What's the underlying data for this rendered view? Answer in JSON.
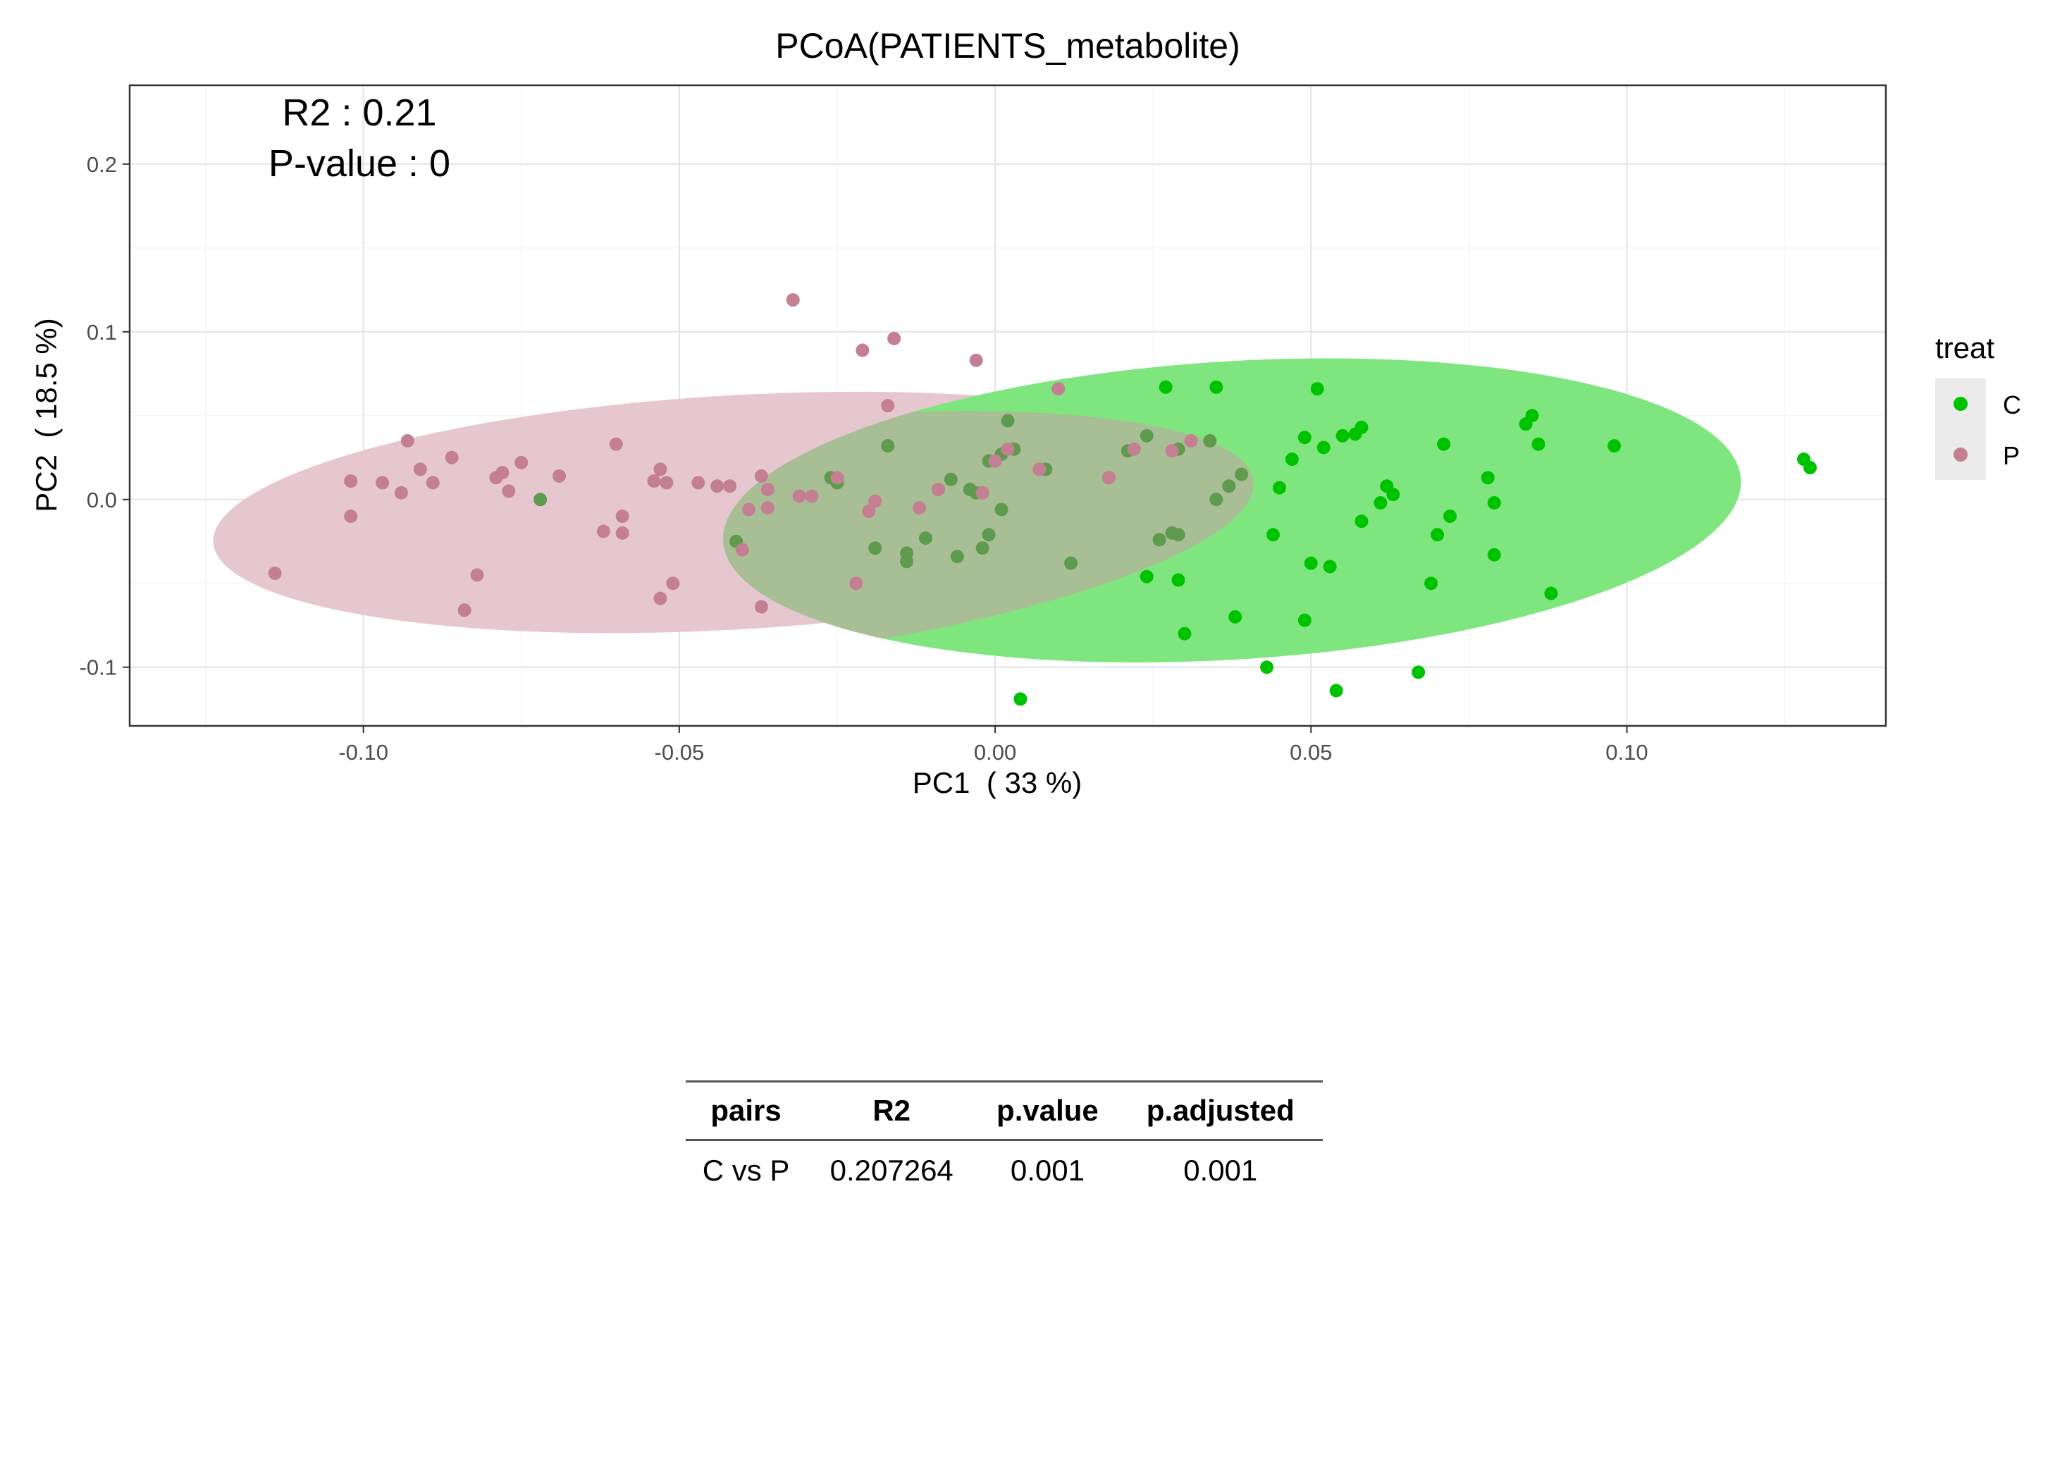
{
  "title": "PCoA(PATIENTS_metabolite)",
  "annotation": {
    "r2_text": "R2 : 0.21",
    "pvalue_text": "P-value : 0"
  },
  "legend": {
    "title": "treat",
    "items": [
      {
        "label": "C",
        "color": "#00C300"
      },
      {
        "label": "P",
        "color": "#C47F93"
      }
    ]
  },
  "chart_data": {
    "type": "scatter",
    "title": "PCoA(PATIENTS_metabolite)",
    "xlabel": "PC1  ( 33 %)",
    "ylabel": "PC2  ( 18.5 %)",
    "xlim": [
      -0.137,
      0.141
    ],
    "ylim": [
      -0.135,
      0.247
    ],
    "x_ticks": [
      -0.1,
      -0.05,
      0.0,
      0.05,
      0.1
    ],
    "x_tick_labels": [
      "-0.10",
      "-0.05",
      "0.00",
      "0.05",
      "0.10"
    ],
    "y_ticks": [
      -0.1,
      0.0,
      0.1,
      0.2
    ],
    "y_tick_labels": [
      "-0.1",
      "0.0",
      "0.1",
      "0.2"
    ],
    "grid": "on",
    "legend_position": "right",
    "ellipse_colors": {
      "C": "#7CE57C",
      "P": "#E5C6CF"
    },
    "ellipses": [
      {
        "group": "P",
        "center": [
          -0.0413,
          -0.0077
        ],
        "semi_axes": [
          0.0826,
          0.0698
        ],
        "angle_deg": 3.3
      },
      {
        "group": "C",
        "center": [
          0.0375,
          -0.0065
        ],
        "semi_axes": [
          0.0807,
          0.0889
        ],
        "angle_deg": 3.5
      }
    ],
    "series": [
      {
        "name": "C",
        "color": "#00C300",
        "points": [
          [
            -0.072,
            0.0
          ],
          [
            -0.041,
            -0.025
          ],
          [
            -0.026,
            0.013
          ],
          [
            -0.025,
            0.01
          ],
          [
            -0.019,
            -0.029
          ],
          [
            -0.017,
            0.032
          ],
          [
            -0.014,
            -0.032
          ],
          [
            -0.014,
            -0.037
          ],
          [
            -0.011,
            -0.023
          ],
          [
            -0.009,
            0.006
          ],
          [
            -0.007,
            0.012
          ],
          [
            -0.006,
            -0.034
          ],
          [
            -0.004,
            0.006
          ],
          [
            -0.003,
            0.004
          ],
          [
            -0.002,
            -0.029
          ],
          [
            -0.001,
            -0.021
          ],
          [
            -0.001,
            0.023
          ],
          [
            0.001,
            -0.006
          ],
          [
            0.001,
            0.027
          ],
          [
            0.002,
            0.047
          ],
          [
            0.003,
            0.03
          ],
          [
            0.004,
            -0.119
          ],
          [
            0.008,
            0.018
          ],
          [
            0.012,
            -0.038
          ],
          [
            0.018,
            0.013
          ],
          [
            0.021,
            0.029
          ],
          [
            0.024,
            -0.046
          ],
          [
            0.024,
            0.038
          ],
          [
            0.026,
            -0.024
          ],
          [
            0.027,
            0.067
          ],
          [
            0.028,
            -0.02
          ],
          [
            0.029,
            -0.021
          ],
          [
            0.029,
            0.03
          ],
          [
            0.029,
            -0.048
          ],
          [
            0.03,
            -0.08
          ],
          [
            0.034,
            0.035
          ],
          [
            0.035,
            0.067
          ],
          [
            0.035,
            0.0
          ],
          [
            0.037,
            0.008
          ],
          [
            0.038,
            -0.07
          ],
          [
            0.039,
            0.015
          ],
          [
            0.043,
            -0.1
          ],
          [
            0.044,
            -0.021
          ],
          [
            0.045,
            0.007
          ],
          [
            0.047,
            0.024
          ],
          [
            0.049,
            0.037
          ],
          [
            0.049,
            -0.072
          ],
          [
            0.05,
            -0.038
          ],
          [
            0.051,
            0.066
          ],
          [
            0.052,
            0.031
          ],
          [
            0.053,
            -0.04
          ],
          [
            0.054,
            -0.114
          ],
          [
            0.055,
            0.038
          ],
          [
            0.057,
            0.039
          ],
          [
            0.058,
            0.043
          ],
          [
            0.058,
            -0.013
          ],
          [
            0.061,
            -0.002
          ],
          [
            0.062,
            0.008
          ],
          [
            0.063,
            0.003
          ],
          [
            0.067,
            -0.103
          ],
          [
            0.069,
            -0.05
          ],
          [
            0.07,
            -0.021
          ],
          [
            0.071,
            0.033
          ],
          [
            0.072,
            -0.01
          ],
          [
            0.078,
            0.013
          ],
          [
            0.079,
            -0.033
          ],
          [
            0.079,
            -0.002
          ],
          [
            0.084,
            0.045
          ],
          [
            0.085,
            0.05
          ],
          [
            0.086,
            0.033
          ],
          [
            0.088,
            -0.056
          ],
          [
            0.098,
            0.032
          ],
          [
            0.128,
            0.024
          ],
          [
            0.129,
            0.019
          ]
        ]
      },
      {
        "name": "P",
        "color": "#C47F93",
        "points": [
          [
            -0.114,
            -0.044
          ],
          [
            -0.102,
            0.011
          ],
          [
            -0.102,
            -0.01
          ],
          [
            -0.097,
            0.01
          ],
          [
            -0.094,
            0.004
          ],
          [
            -0.093,
            0.035
          ],
          [
            -0.091,
            0.018
          ],
          [
            -0.089,
            0.01
          ],
          [
            -0.086,
            0.025
          ],
          [
            -0.084,
            -0.066
          ],
          [
            -0.082,
            -0.045
          ],
          [
            -0.079,
            0.013
          ],
          [
            -0.078,
            0.016
          ],
          [
            -0.077,
            0.005
          ],
          [
            -0.075,
            0.022
          ],
          [
            -0.069,
            0.014
          ],
          [
            -0.062,
            -0.019
          ],
          [
            -0.06,
            0.033
          ],
          [
            -0.059,
            -0.01
          ],
          [
            -0.059,
            -0.02
          ],
          [
            -0.054,
            0.011
          ],
          [
            -0.053,
            -0.059
          ],
          [
            -0.053,
            0.018
          ],
          [
            -0.052,
            0.01
          ],
          [
            -0.051,
            -0.05
          ],
          [
            -0.047,
            0.01
          ],
          [
            -0.044,
            0.008
          ],
          [
            -0.042,
            0.008
          ],
          [
            -0.04,
            -0.03
          ],
          [
            -0.039,
            -0.006
          ],
          [
            -0.037,
            0.014
          ],
          [
            -0.037,
            -0.064
          ],
          [
            -0.036,
            0.006
          ],
          [
            -0.036,
            -0.005
          ],
          [
            -0.032,
            0.119
          ],
          [
            -0.031,
            0.002
          ],
          [
            -0.029,
            0.002
          ],
          [
            -0.025,
            0.013
          ],
          [
            -0.022,
            -0.05
          ],
          [
            -0.021,
            0.089
          ],
          [
            -0.02,
            -0.007
          ],
          [
            -0.019,
            -0.001
          ],
          [
            -0.017,
            0.056
          ],
          [
            -0.016,
            0.096
          ],
          [
            -0.012,
            -0.005
          ],
          [
            -0.009,
            0.006
          ],
          [
            -0.003,
            0.083
          ],
          [
            -0.002,
            0.004
          ],
          [
            0.0,
            0.023
          ],
          [
            0.002,
            0.03
          ],
          [
            0.007,
            0.018
          ],
          [
            0.01,
            0.066
          ],
          [
            0.018,
            0.013
          ],
          [
            0.022,
            0.03
          ],
          [
            0.028,
            0.029
          ],
          [
            0.031,
            0.035
          ]
        ]
      }
    ]
  },
  "permanova_table": {
    "headers": [
      "pairs",
      "R2",
      "p.value",
      "p.adjusted"
    ],
    "rows": [
      [
        "C vs P",
        "0.207264",
        "0.001",
        "0.001"
      ]
    ]
  }
}
